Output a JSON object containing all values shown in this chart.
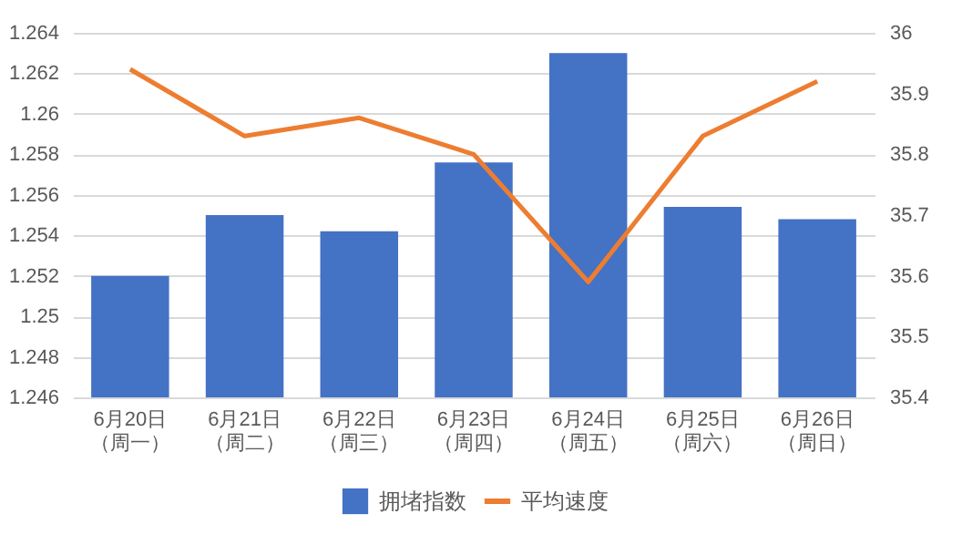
{
  "chart_data": {
    "type": "bar",
    "categories": [
      "6月20日（周一）",
      "6月21日（周二）",
      "6月22日（周三）",
      "6月23日（周四）",
      "6月24日（周五）",
      "6月25日（周六）",
      "6月26日（周日）"
    ],
    "series": [
      {
        "name": "拥堵指数",
        "color": "#4472c4",
        "values": [
          1.252,
          1.255,
          1.2542,
          1.2576,
          1.263,
          1.2554,
          1.2548
        ]
      },
      {
        "name": "平均速度",
        "type": "line",
        "axis": "y2",
        "color": "#ed7d31",
        "values": [
          35.94,
          35.83,
          35.86,
          35.8,
          35.59,
          35.83,
          35.92
        ]
      }
    ],
    "ylim": [
      1.246,
      1.264
    ],
    "yticks": [
      1.246,
      1.248,
      1.25,
      1.252,
      1.254,
      1.256,
      1.258,
      1.26,
      1.262,
      1.264
    ],
    "y2lim": [
      35.4,
      36
    ],
    "y2ticks": [
      35.4,
      35.5,
      35.6,
      35.7,
      35.8,
      35.9,
      36
    ],
    "grid": "y",
    "legend": "bottom",
    "marker": "none",
    "line_style": "solid"
  }
}
